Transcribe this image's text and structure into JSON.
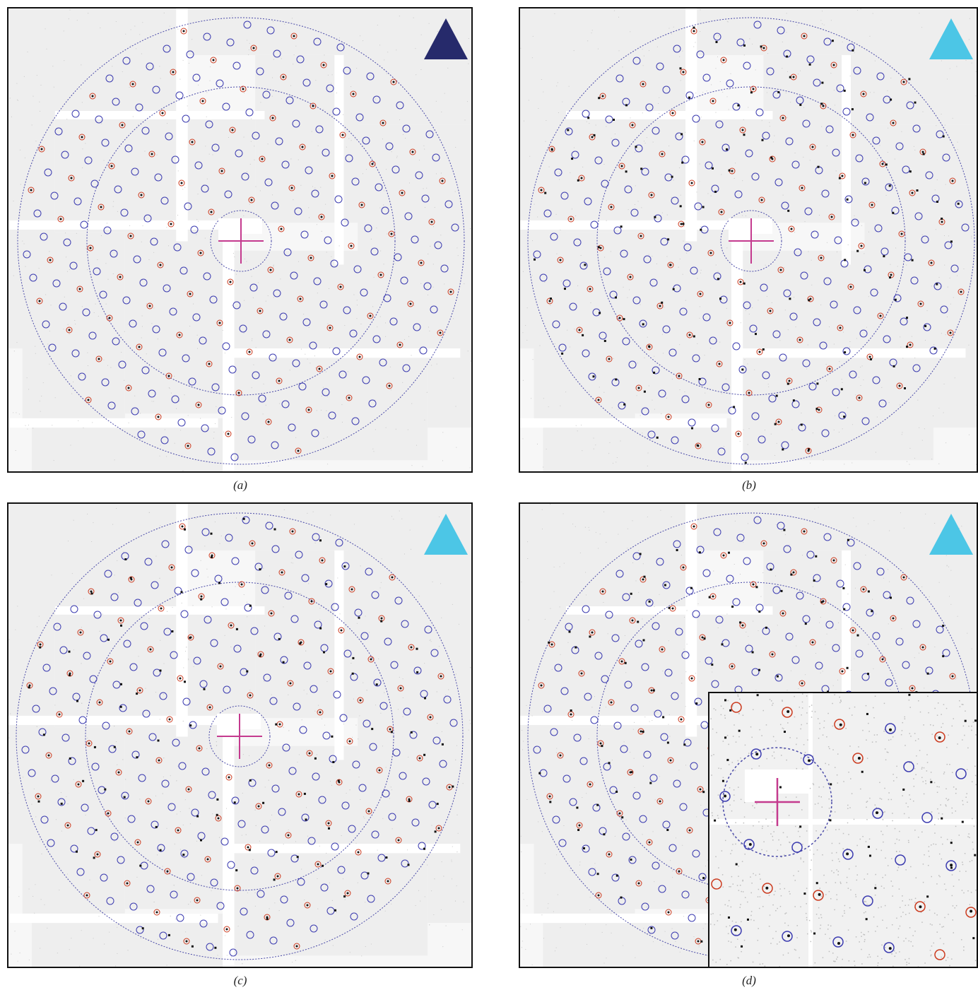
{
  "panels": [
    {
      "id": "a",
      "caption": "(a)",
      "triangle_color": "#262a6b"
    },
    {
      "id": "b",
      "caption": "(b)",
      "triangle_color": "#4cc6e6"
    },
    {
      "id": "c",
      "caption": "(c)",
      "triangle_color": "#4cc6e6"
    },
    {
      "id": "d",
      "caption": "(d)",
      "triangle_color": "#4cc6e6"
    }
  ],
  "colors": {
    "blue_reflection": "#3b3bb0",
    "red_reflection": "#cc3b1f",
    "ring": "#4a4aa8",
    "beam_cross": "#c43a8e",
    "spot": "#111111"
  },
  "icons": [
    "triangle-icon",
    "beam-center-cross-icon"
  ]
}
